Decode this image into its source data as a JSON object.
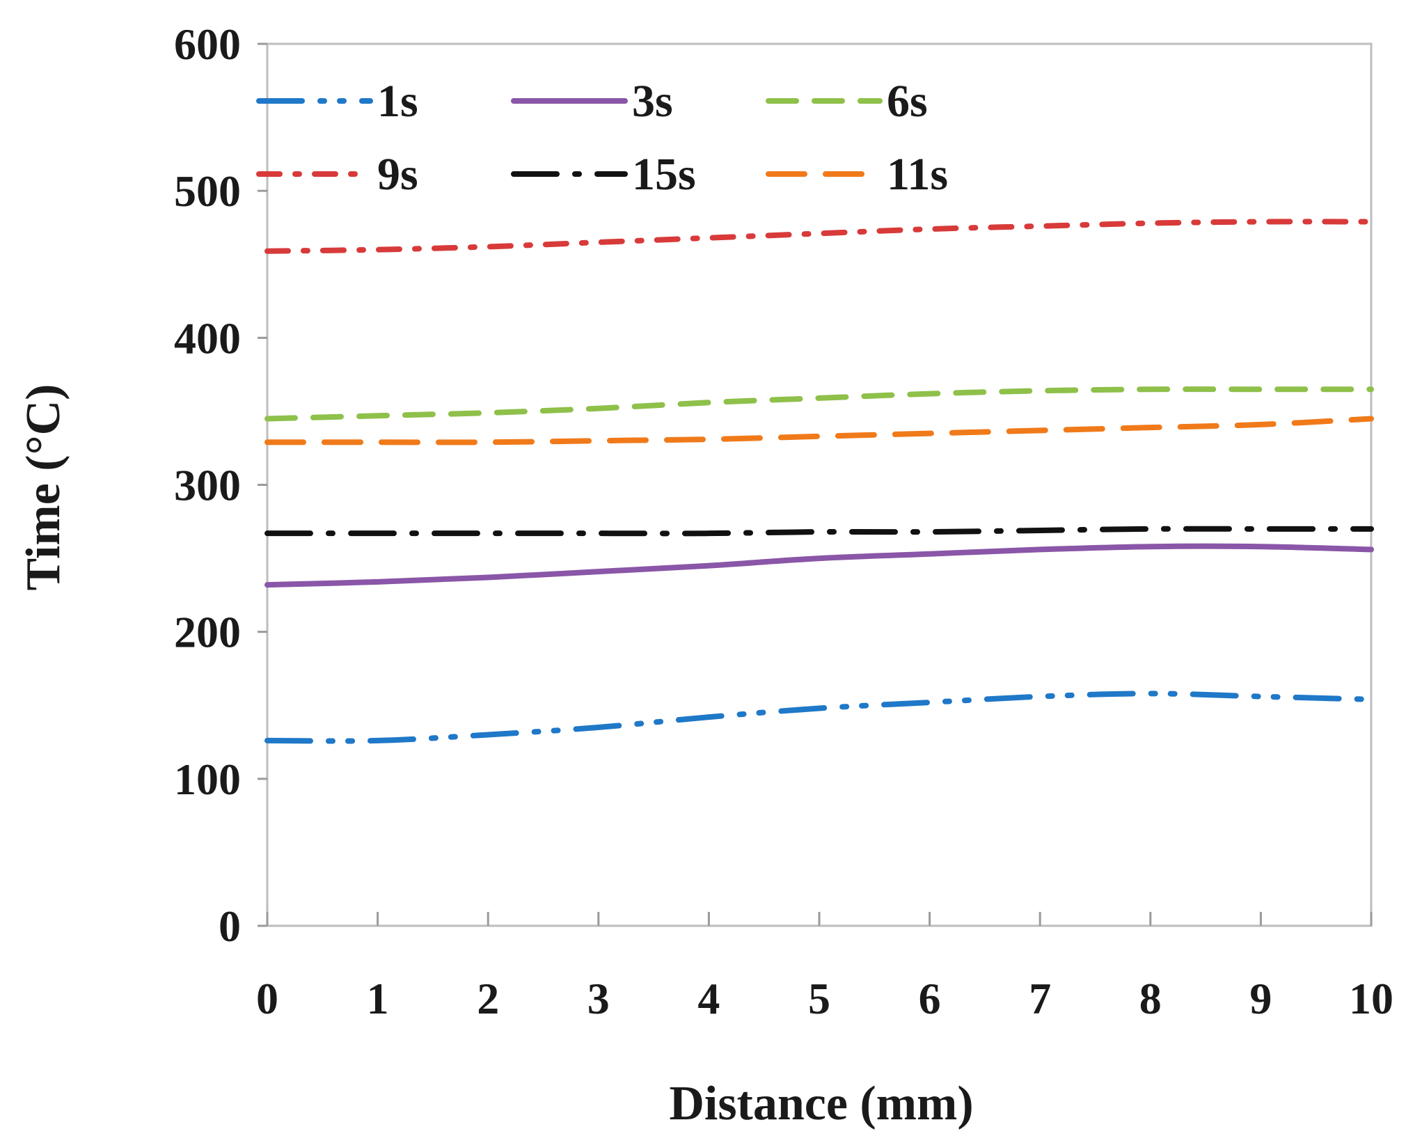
{
  "chart_data": {
    "type": "line",
    "title": "",
    "xlabel": "Distance (mm)",
    "ylabel": "Time (°C)",
    "xlim": [
      0,
      10
    ],
    "ylim": [
      0,
      600
    ],
    "x_ticks": [
      "0",
      "1",
      "2",
      "3",
      "4",
      "5",
      "6",
      "7",
      "8",
      "9",
      "10"
    ],
    "y_ticks": [
      "0",
      "100",
      "200",
      "300",
      "400",
      "500",
      "600"
    ],
    "grid": false,
    "legend_position": "top",
    "x": [
      0,
      1,
      2,
      3,
      4,
      5,
      6,
      7,
      8,
      9,
      10
    ],
    "series": [
      {
        "name": "1s",
        "color": "#1f78c8",
        "dash": "long-dash-dot-dot",
        "values": [
          126,
          126,
          130,
          135,
          142,
          148,
          152,
          156,
          158,
          156,
          154
        ]
      },
      {
        "name": "3s",
        "color": "#8a56a8",
        "dash": "solid",
        "values": [
          232,
          234,
          237,
          241,
          245,
          250,
          253,
          256,
          258,
          258,
          256
        ]
      },
      {
        "name": "6s",
        "color": "#8ec04a",
        "dash": "dash",
        "values": [
          345,
          347,
          349,
          352,
          356,
          359,
          362,
          364,
          365,
          365,
          365
        ]
      },
      {
        "name": "9s",
        "color": "#d83a3a",
        "dash": "dash-dot",
        "values": [
          459,
          460,
          462,
          465,
          468,
          471,
          474,
          476,
          478,
          479,
          479
        ]
      },
      {
        "name": "15s",
        "color": "#111111",
        "dash": "long-dash-dot",
        "values": [
          267,
          267,
          267,
          267,
          267,
          268,
          268,
          269,
          270,
          270,
          270
        ]
      },
      {
        "name": "11s",
        "color": "#f07a1a",
        "dash": "long-dash",
        "values": [
          329,
          329,
          329,
          330,
          331,
          333,
          335,
          337,
          339,
          341,
          345
        ]
      }
    ]
  }
}
